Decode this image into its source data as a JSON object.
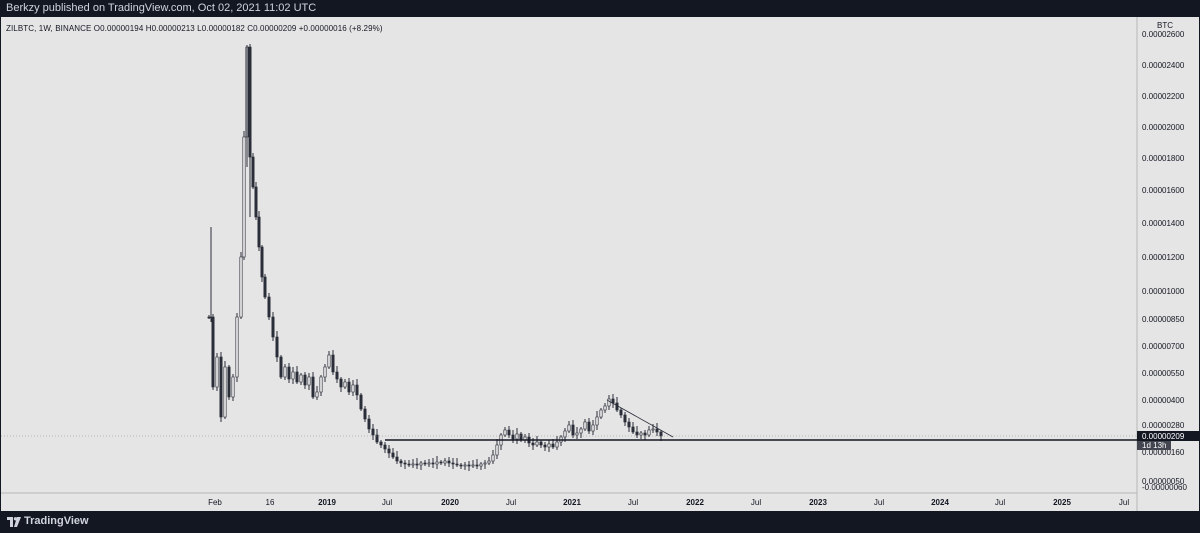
{
  "header": {
    "published_text": "Berkzy published on TradingView.com, Oct 02, 2021 11:02 UTC"
  },
  "legend": {
    "text": "ZILBTC, 1W, BINANCE  O0.00000194  H0.00000213  L0.00000182  C0.00000209  +0.00000016 (+8.29%)"
  },
  "currency": "BTC",
  "price_label": {
    "value": "0.00000209",
    "countdown": "1d 13h"
  },
  "footer": {
    "brand": "TradingView"
  },
  "chart_data": {
    "type": "candlestick",
    "symbol": "ZILBTC",
    "interval": "1W",
    "exchange": "BINANCE",
    "ohlc_last": {
      "open": 1.94e-06,
      "high": 2.13e-06,
      "low": 1.82e-06,
      "close": 2.09e-06,
      "change": 1.6e-07,
      "change_pct": 8.29
    },
    "y_axis": {
      "scale": "log",
      "ticks": [
        "0.00002600",
        "0.00002400",
        "0.00002200",
        "0.00002000",
        "0.00001800",
        "0.00001600",
        "0.00001400",
        "0.00001200",
        "0.00001000",
        "0.00000850",
        "0.00000700",
        "0.00000550",
        "0.00000400",
        "0.00000280",
        "0.00000160",
        "0.00000050",
        "-0.00000060"
      ]
    },
    "x_axis": {
      "ticks": [
        {
          "label": "Feb",
          "bold": false
        },
        {
          "label": "16",
          "bold": false
        },
        {
          "label": "2019",
          "bold": true
        },
        {
          "label": "Jul",
          "bold": false
        },
        {
          "label": "2020",
          "bold": true
        },
        {
          "label": "Jul",
          "bold": false
        },
        {
          "label": "2021",
          "bold": true
        },
        {
          "label": "Jul",
          "bold": false
        },
        {
          "label": "2022",
          "bold": true
        },
        {
          "label": "Jul",
          "bold": false
        },
        {
          "label": "2023",
          "bold": true
        },
        {
          "label": "Jul",
          "bold": false
        },
        {
          "label": "2024",
          "bold": true
        },
        {
          "label": "Jul",
          "bold": false
        },
        {
          "label": "2025",
          "bold": true
        },
        {
          "label": "Jul",
          "bold": false
        }
      ]
    },
    "series": [
      {
        "name": "ZILBTC",
        "x": [
          "2018-02",
          "2018-04",
          "2018-05",
          "2018-06",
          "2018-08",
          "2018-10",
          "2019-01",
          "2019-04",
          "2019-07",
          "2019-10",
          "2020-01",
          "2020-04",
          "2020-07",
          "2020-10",
          "2021-01",
          "2021-03",
          "2021-05",
          "2021-07",
          "2021-09"
        ],
        "values": [
          1.3e-05,
          5e-06,
          2e-05,
          9e-06,
          6e-06,
          6e-06,
          5.5e-06,
          4e-06,
          1.2e-06,
          8e-07,
          8e-07,
          7e-07,
          2.5e-06,
          2e-06,
          2e-06,
          2.8e-06,
          4.5e-06,
          2.5e-06,
          2.1e-06
        ]
      }
    ],
    "annotations": [
      {
        "type": "horizontal_line",
        "value": 2.09e-06
      },
      {
        "type": "trendline",
        "from": [
          "2021-05",
          4.5e-06
        ],
        "to": [
          "2021-10",
          2.1e-06
        ]
      }
    ]
  }
}
